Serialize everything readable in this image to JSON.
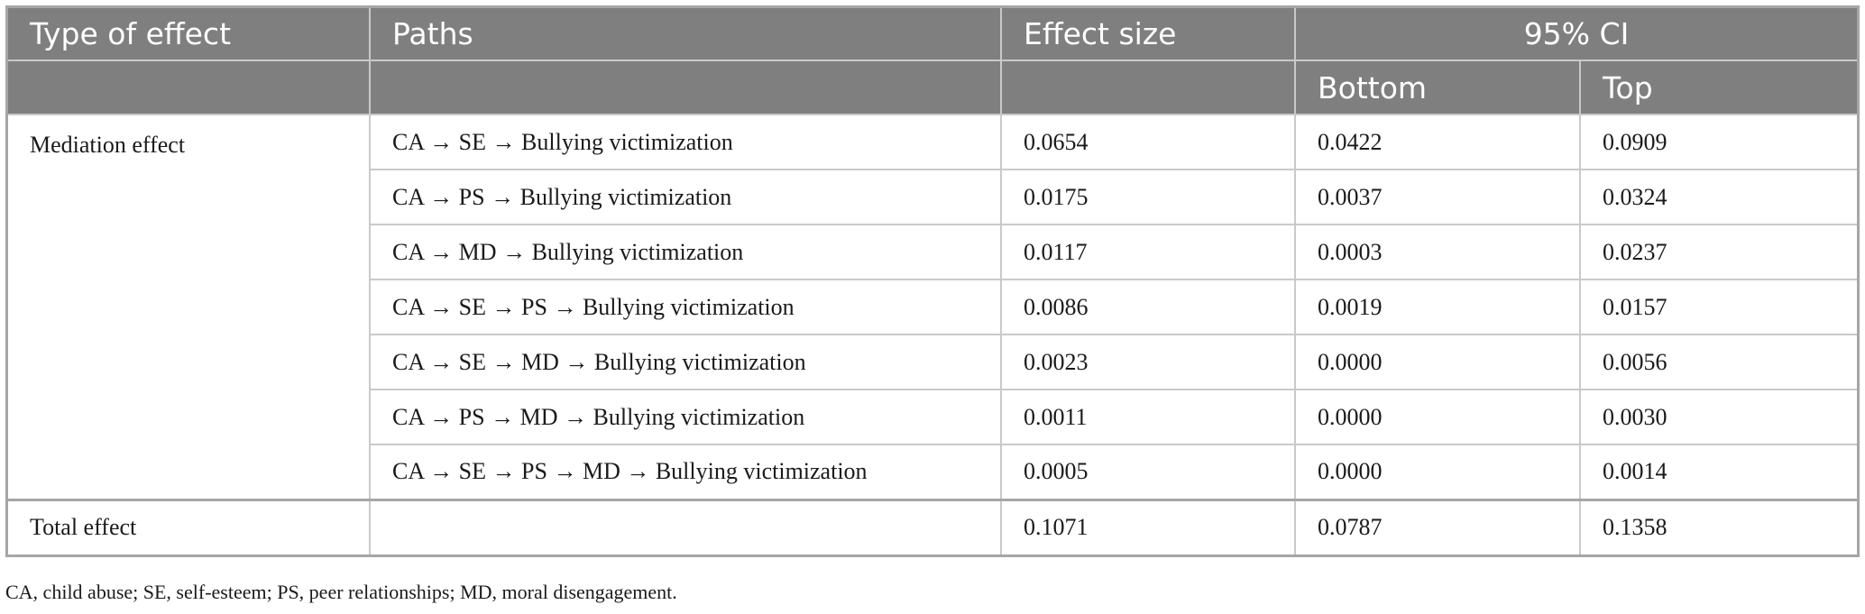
{
  "header": {
    "type_of_effect": "Type of effect",
    "paths": "Paths",
    "effect_size": "Effect size",
    "ci": "95% CI",
    "bottom": "Bottom",
    "top": "Top"
  },
  "mediation": {
    "label": "Mediation effect",
    "rows": [
      {
        "path": "CA → SE → Bullying victimization",
        "effect": "0.0654",
        "bottom": "0.0422",
        "top": "0.0909"
      },
      {
        "path": "CA → PS → Bullying victimization",
        "effect": "0.0175",
        "bottom": "0.0037",
        "top": "0.0324"
      },
      {
        "path": "CA → MD → Bullying victimization",
        "effect": "0.0117",
        "bottom": "0.0003",
        "top": "0.0237"
      },
      {
        "path": "CA → SE → PS → Bullying victimization",
        "effect": "0.0086",
        "bottom": "0.0019",
        "top": "0.0157"
      },
      {
        "path": "CA → SE → MD → Bullying victimization",
        "effect": "0.0023",
        "bottom": "0.0000",
        "top": "0.0056"
      },
      {
        "path": "CA → PS → MD → Bullying victimization",
        "effect": "0.0011",
        "bottom": "0.0000",
        "top": "0.0030"
      },
      {
        "path": "CA → SE → PS → MD → Bullying victimization",
        "effect": "0.0005",
        "bottom": "0.0000",
        "top": "0.0014"
      }
    ]
  },
  "total": {
    "label": "Total effect",
    "path": "",
    "effect": "0.1071",
    "bottom": "0.0787",
    "top": "0.1358"
  },
  "footnote": "CA, child abuse; SE, self-esteem; PS, peer relationships; MD, moral disengagement."
}
